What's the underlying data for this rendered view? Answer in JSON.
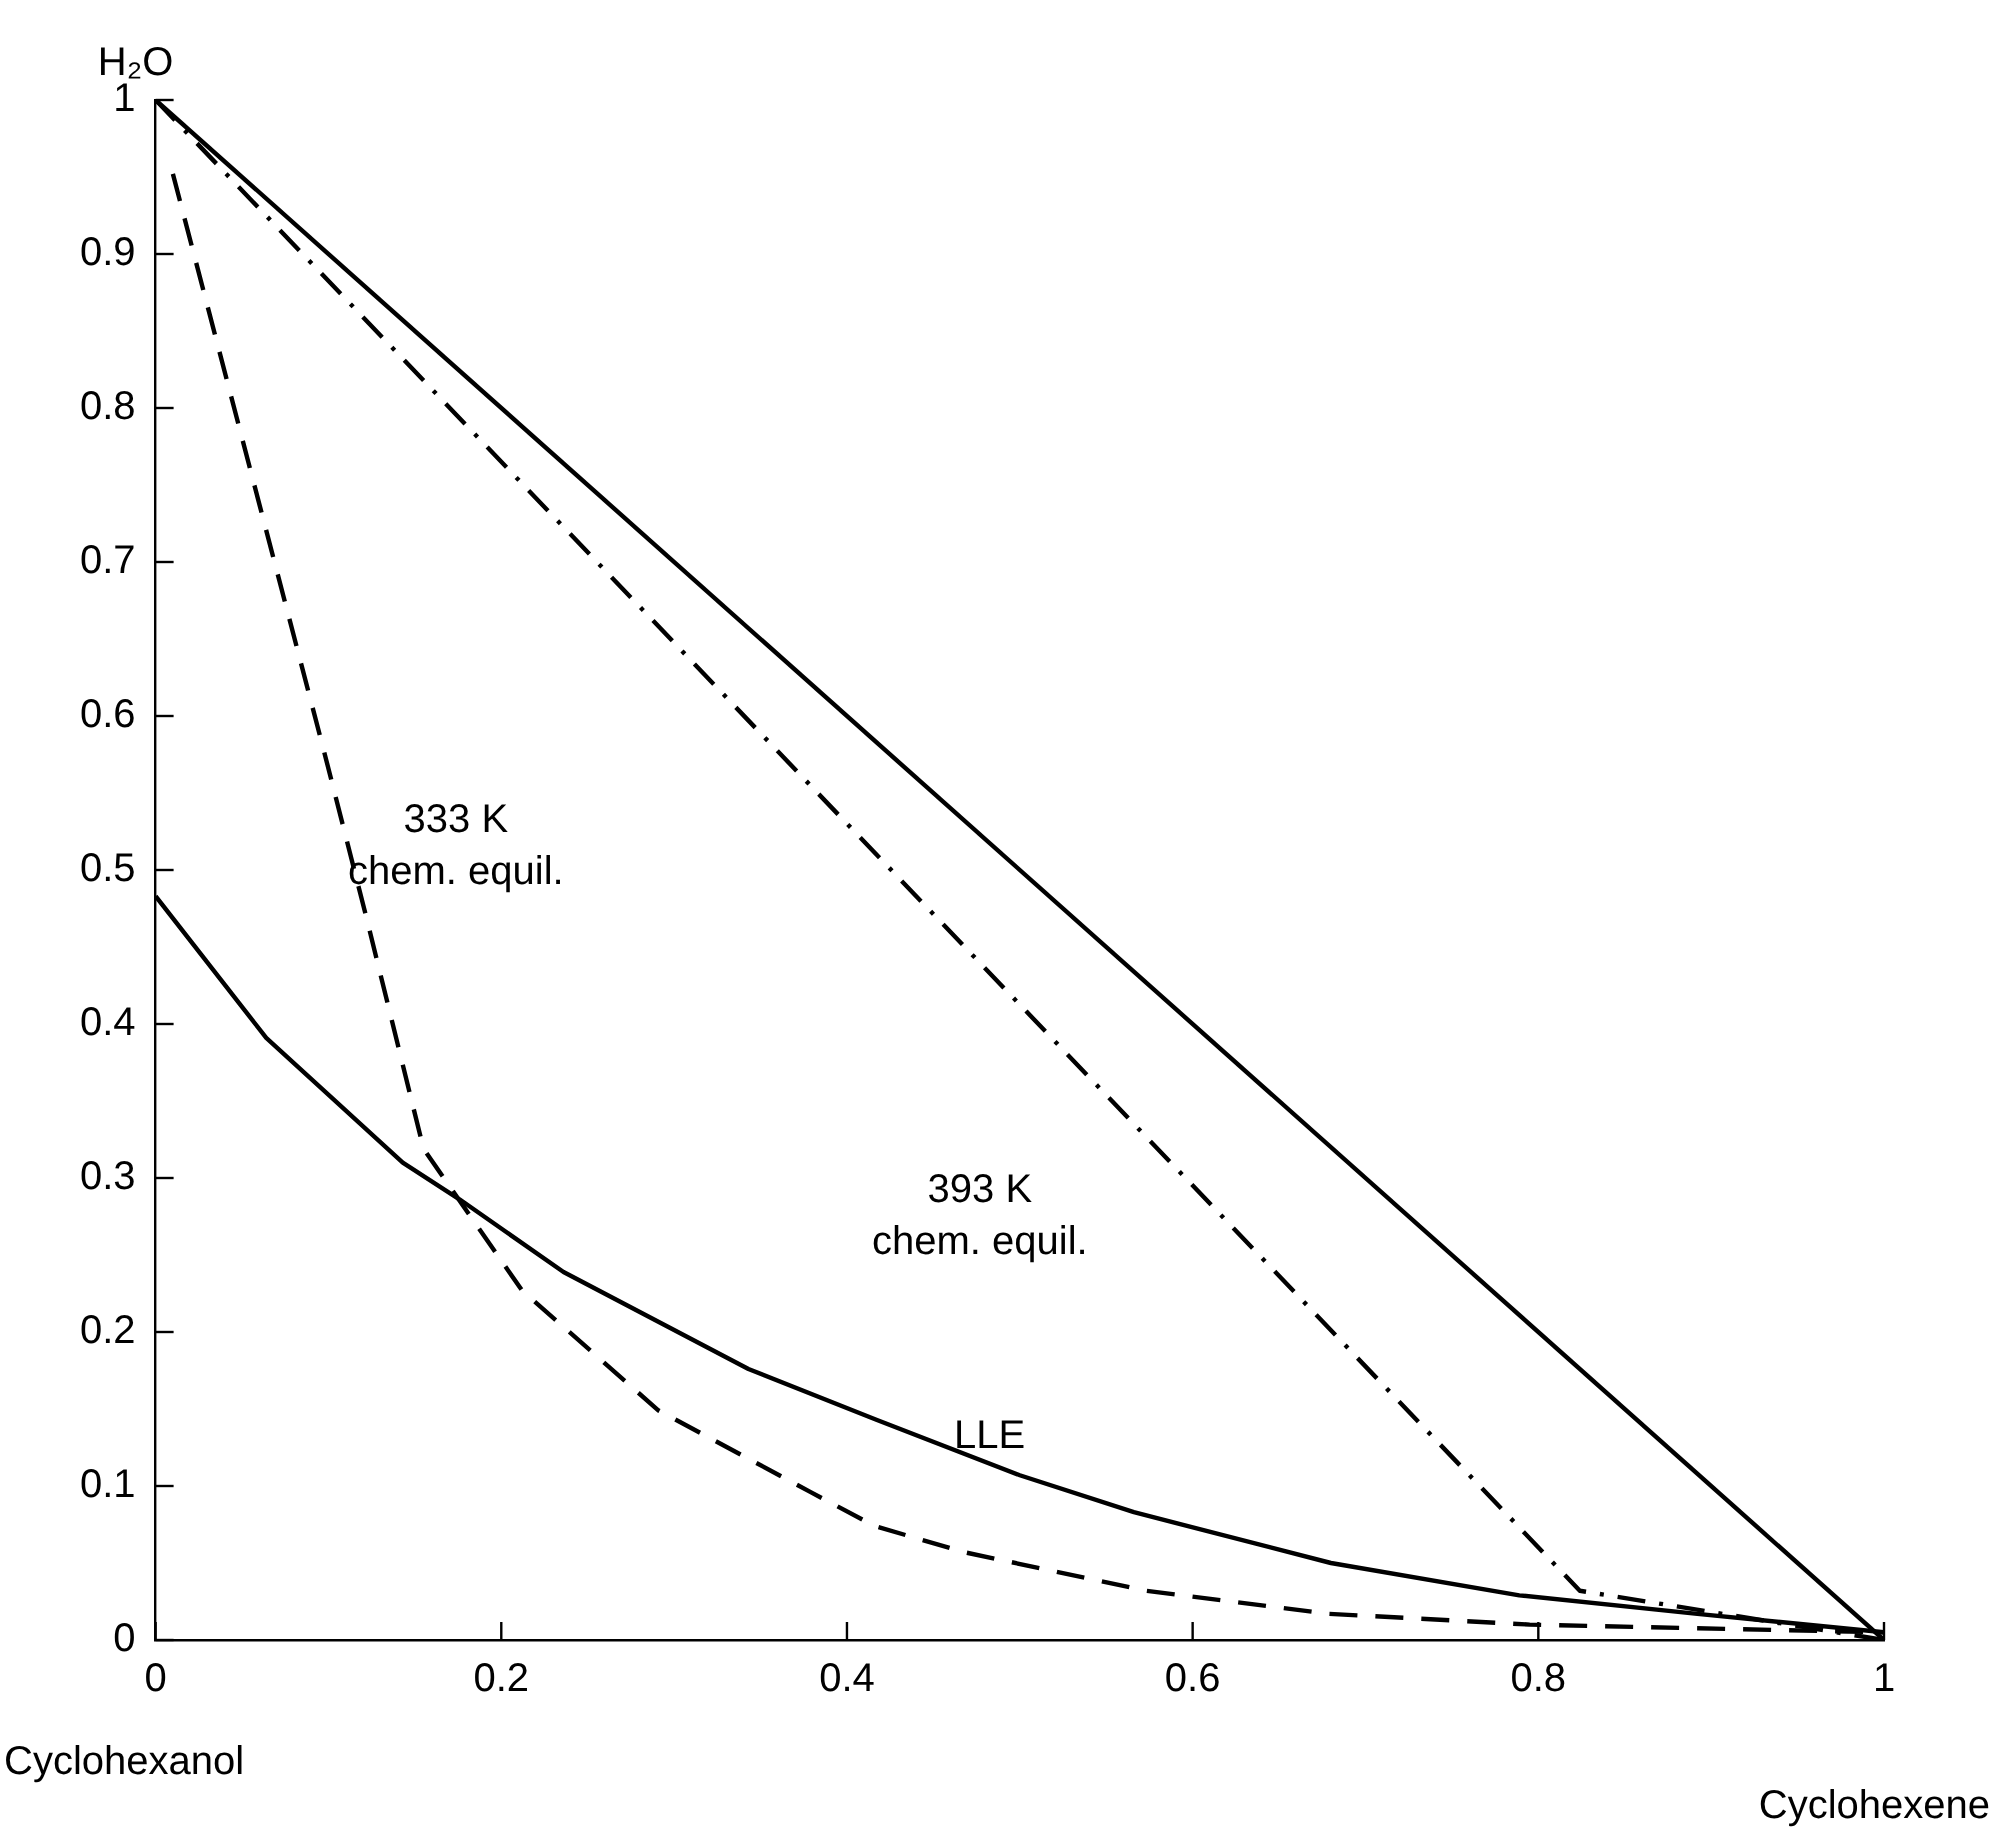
{
  "chart_data": {
    "type": "line",
    "ylabel": "H₂O",
    "xlim": [
      0,
      1
    ],
    "xticks": [
      0,
      0.2,
      0.4,
      0.6,
      0.8,
      1
    ],
    "ylim": [
      0,
      1
    ],
    "yticks": [
      0,
      0.1,
      0.2,
      0.3,
      0.4,
      0.5,
      0.6,
      0.7,
      0.8,
      0.9,
      1
    ],
    "grid": false,
    "legend": false,
    "marker": "none",
    "series": [
      {
        "color": "#000000",
        "line_style": "solid",
        "x": [
          0,
          1
        ],
        "values": [
          1,
          0
        ]
      },
      {
        "color": "#000000",
        "line_style": "solid",
        "x": [
          0,
          0.064,
          0.143,
          0.176,
          0.236,
          0.343,
          0.417,
          0.5,
          0.566,
          0.68,
          0.789,
          0.892,
          1
        ],
        "values": [
          0.483,
          0.391,
          0.31,
          0.286,
          0.239,
          0.176,
          0.143,
          0.107,
          0.083,
          0.05,
          0.029,
          0.017,
          0.005
        ]
      },
      {
        "color": "#000000",
        "line_style": "dashed",
        "x": [
          0.01,
          0.097,
          0.122,
          0.155,
          0.176,
          0.212,
          0.291,
          0.379,
          0.416,
          0.468,
          0.573,
          0.679,
          0.795,
          1
        ],
        "values": [
          0.952,
          0.579,
          0.469,
          0.319,
          0.285,
          0.227,
          0.149,
          0.096,
          0.074,
          0.057,
          0.032,
          0.017,
          0.01,
          0.005
        ]
      },
      {
        "color": "#000000",
        "line_style": "dashdot",
        "x": [
          0,
          0.824,
          1
        ],
        "values": [
          1,
          0.032,
          0
        ]
      }
    ],
    "annotations": [
      "333 K\nchem. equil.",
      "393 K\nchem. equil.",
      "LLE",
      "Cyclohexanol",
      "Cyclohexene"
    ]
  }
}
